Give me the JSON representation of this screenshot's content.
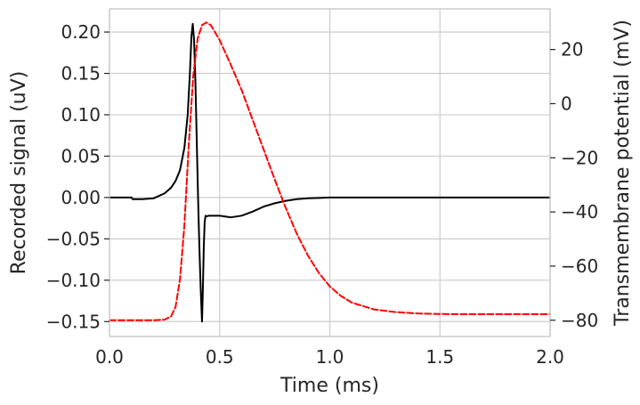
{
  "chart_data": {
    "type": "line",
    "title": "",
    "xlabel": "Time (ms)",
    "ylabel_left": "Recorded signal (uV)",
    "ylabel_right": "Transmembrane potential (mV)",
    "xlim": [
      0.0,
      2.0
    ],
    "ylim_left": [
      -0.168,
      0.228
    ],
    "ylim_right": [
      -86.0,
      35.0
    ],
    "xticks": [
      "0.0",
      "0.5",
      "1.0",
      "1.5",
      "2.0"
    ],
    "yticks_left": [
      "0.20",
      "0.15",
      "0.10",
      "0.05",
      "0.00",
      "−0.05",
      "−0.10",
      "−0.15"
    ],
    "yticks_right": [
      "20",
      "0",
      "−20",
      "−40",
      "−60",
      "−80"
    ],
    "grid": true,
    "colors": {
      "left_series": "#000000",
      "right_series": "#ff0000",
      "right_axis_label": "#ff0000"
    },
    "series": [
      {
        "axis": "left",
        "style": "solid",
        "x": [
          0.0,
          0.1,
          0.105,
          0.15,
          0.2,
          0.25,
          0.28,
          0.3,
          0.32,
          0.34,
          0.355,
          0.365,
          0.372,
          0.378,
          0.384,
          0.39,
          0.396,
          0.402,
          0.408,
          0.414,
          0.42,
          0.424,
          0.428,
          0.432,
          0.436,
          0.44,
          0.45,
          0.5,
          0.55,
          0.6,
          0.65,
          0.7,
          0.75,
          0.8,
          0.85,
          0.9,
          0.95,
          1.0,
          1.1,
          1.2,
          1.3,
          1.5,
          1.7,
          2.0
        ],
        "y": [
          0.0,
          0.0,
          -0.002,
          -0.002,
          -0.001,
          0.005,
          0.012,
          0.02,
          0.033,
          0.06,
          0.1,
          0.15,
          0.195,
          0.21,
          0.19,
          0.14,
          0.07,
          0.0,
          -0.06,
          -0.11,
          -0.15,
          -0.11,
          -0.06,
          -0.03,
          -0.022,
          -0.023,
          -0.022,
          -0.022,
          -0.024,
          -0.022,
          -0.017,
          -0.011,
          -0.007,
          -0.004,
          -0.002,
          -0.001,
          -0.0005,
          0.0,
          0.0,
          0.0,
          0.0,
          0.0,
          0.0,
          0.0
        ]
      },
      {
        "axis": "right",
        "style": "dashed",
        "x": [
          0.0,
          0.1,
          0.2,
          0.25,
          0.28,
          0.3,
          0.32,
          0.34,
          0.36,
          0.38,
          0.4,
          0.42,
          0.44,
          0.46,
          0.5,
          0.55,
          0.6,
          0.65,
          0.7,
          0.75,
          0.8,
          0.85,
          0.9,
          0.95,
          1.0,
          1.05,
          1.1,
          1.2,
          1.3,
          1.4,
          1.5,
          1.6,
          1.8,
          2.0
        ],
        "y": [
          -80,
          -80,
          -80,
          -79.8,
          -78.5,
          -75,
          -65,
          -45,
          -15,
          10,
          24,
          29,
          30,
          29,
          23.5,
          14.5,
          5,
          -6,
          -17,
          -28,
          -38.5,
          -48,
          -56,
          -62.5,
          -67.5,
          -71,
          -73.5,
          -76,
          -77,
          -77.5,
          -77.7,
          -77.8,
          -77.8,
          -77.8
        ]
      }
    ]
  }
}
